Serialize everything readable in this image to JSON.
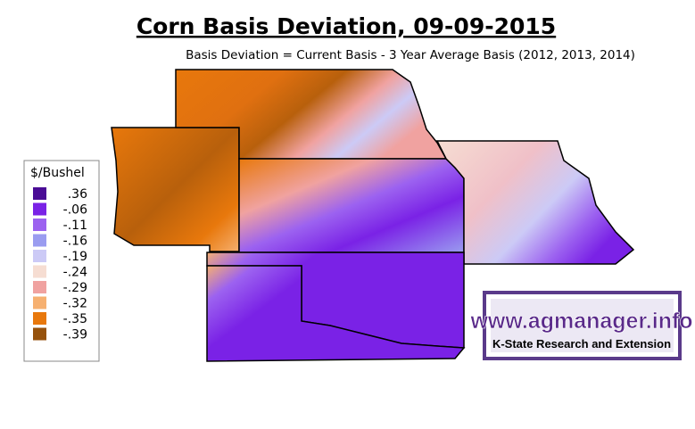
{
  "title": "Corn Basis Deviation, 09-09-2015",
  "subtitle": "Basis Deviation = Current Basis - 3 Year Average Basis (2012, 2013, 2014)",
  "legend": {
    "title": "$/Bushel",
    "items": [
      {
        "label": ".36",
        "color": "#4a0c96"
      },
      {
        "label": "-.06",
        "color": "#7a22e6"
      },
      {
        "label": "-.11",
        "color": "#9c62f0"
      },
      {
        "label": "-.16",
        "color": "#9a9cf0"
      },
      {
        "label": "-.19",
        "color": "#cccaf6"
      },
      {
        "label": "-.24",
        "color": "#f6ddd2"
      },
      {
        "label": "-.29",
        "color": "#f0a2a0"
      },
      {
        "label": "-.32",
        "color": "#f6b070"
      },
      {
        "label": "-.35",
        "color": "#e8780c"
      },
      {
        "label": "-.39",
        "color": "#96520c"
      }
    ]
  },
  "logo": {
    "url": "www.agmanager.info",
    "caption": "K-State Research and Extension"
  }
}
